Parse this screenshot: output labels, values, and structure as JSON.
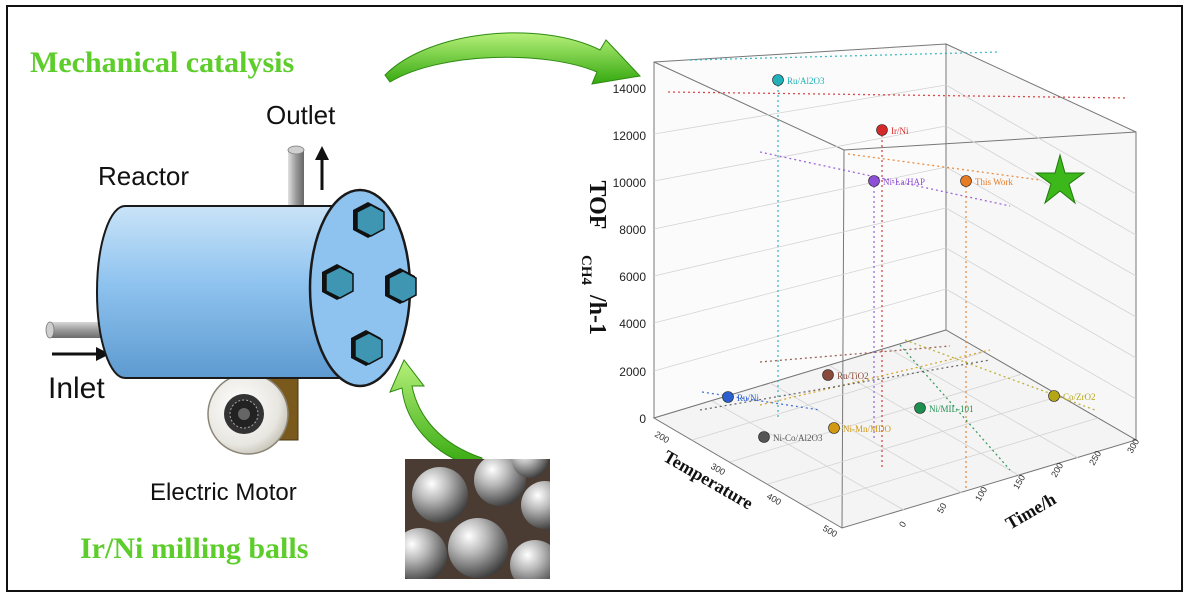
{
  "diagram": {
    "title_mech": "Mechanical catalysis",
    "label_outlet": "Outlet",
    "label_reactor": "Reactor",
    "label_inlet": "Inlet",
    "label_motor": "Electric Motor",
    "label_balls": "Ir/Ni milling balls",
    "colors": {
      "green": "#5ccd2a",
      "reactor_blue": "#8fc3ef",
      "hex_blue": "#3e96b3"
    }
  },
  "chart_data": {
    "type": "scatter",
    "zlabel_main": "TOF",
    "zlabel_sub": "CH4",
    "zlabel_tail": "/h-1",
    "xlabel": "Temperature",
    "ylabel": "Time/h",
    "z_ticks": [
      "0",
      "2000",
      "4000",
      "6000",
      "8000",
      "10000",
      "12000",
      "14000"
    ],
    "temp_ticks": [
      "200",
      "300",
      "400",
      "500"
    ],
    "time_ticks": [
      "0",
      "50",
      "100",
      "150",
      "200",
      "250",
      "300"
    ],
    "zlim": [
      0,
      15000
    ],
    "points": [
      {
        "name": "Ru/Al2O3",
        "z": 14400,
        "color": "#1fb0b8"
      },
      {
        "name": "Ir/Ni",
        "z": 12200,
        "color": "#d42a2a"
      },
      {
        "name": "Ni-La/HAP",
        "z": 10200,
        "color": "#8d4fd6"
      },
      {
        "name": "This Work",
        "z": 10200,
        "color": "#e87a22"
      },
      {
        "name": "Ru/TiO2",
        "z": 1800,
        "color": "#8a4a3a"
      },
      {
        "name": "Ru/Ni",
        "z": 900,
        "color": "#2b5fd0"
      },
      {
        "name": "Ni/MIL-101",
        "z": 500,
        "color": "#1e8f4e"
      },
      {
        "name": "Co/ZrO2",
        "z": 900,
        "color": "#b5a616"
      },
      {
        "name": "Ni-Mn/MDO",
        "z": 0,
        "color": "#d19a12"
      },
      {
        "name": "Ni-Co/Al2O3",
        "z": 0,
        "color": "#555555"
      }
    ]
  }
}
